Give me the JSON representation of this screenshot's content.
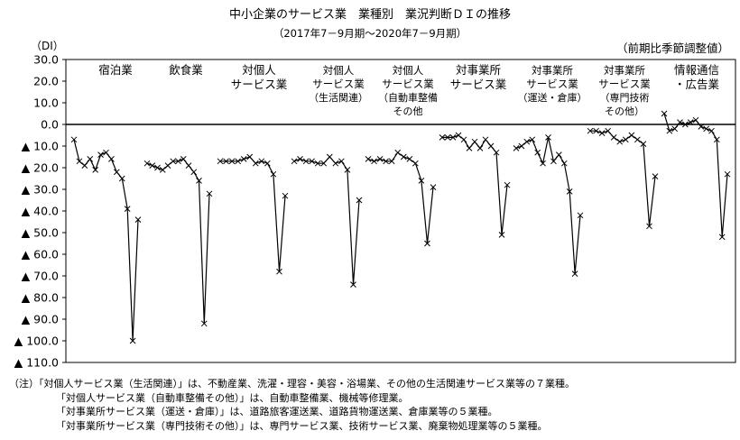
{
  "title": "中小企業のサービス業　業種別　業況判断ＤＩの推移",
  "subtitle": "（2017年7－9月期～2020年7－9月期）",
  "y_unit": "（DI）",
  "right_note": "（前期比季節調整値）",
  "notes": {
    "prefix": "（注）",
    "lines": [
      "「対個人サービス業（生活関連）」は、不動産業、洗濯・理容・美容・浴場業、その他の生活関連サービス業等の７業種。",
      "「対個人サービス業（自動車整備その他）」は、自動車整備業、機械等修理業。",
      "「対事業所サービス業（運送・倉庫）」は、道路旅客運送業、道路貨物運送業、倉庫業等の５業種。",
      "「対事業所サービス業（専門技術その他）」は、専門サービス業、技術サービス業、廃棄物処理業等の５業種。"
    ]
  },
  "chart_data": {
    "type": "line",
    "title": "中小企業のサービス業　業種別　業況判断ＤＩの推移",
    "subtitle": "（2017年7－9月期～2020年7－9月期）",
    "ylabel": "（DI）",
    "ylim": [
      -110,
      30
    ],
    "y_ticks": [
      {
        "value": 30,
        "label": "30.0"
      },
      {
        "value": 20,
        "label": "20.0"
      },
      {
        "value": 10,
        "label": "10.0"
      },
      {
        "value": 0,
        "label": "0.0"
      },
      {
        "value": -10,
        "label": "▲ 10.0"
      },
      {
        "value": -20,
        "label": "▲ 20.0"
      },
      {
        "value": -30,
        "label": "▲ 30.0"
      },
      {
        "value": -40,
        "label": "▲ 40.0"
      },
      {
        "value": -50,
        "label": "▲ 50.0"
      },
      {
        "value": -60,
        "label": "▲ 60.0"
      },
      {
        "value": -70,
        "label": "▲ 70.0"
      },
      {
        "value": -80,
        "label": "▲ 80.0"
      },
      {
        "value": -90,
        "label": "▲ 90.0"
      },
      {
        "value": -100,
        "label": "▲ 100.0"
      },
      {
        "value": -110,
        "label": "▲ 110.0"
      }
    ],
    "grid": false,
    "marker": "x",
    "line_color": "#000000",
    "series": [
      {
        "name": "宿泊業",
        "label_lines": [
          "宿泊業"
        ],
        "values": [
          -7,
          -17,
          -19,
          -16,
          -21,
          -14,
          -13,
          -16,
          -22,
          -25,
          -39,
          -100,
          -44
        ]
      },
      {
        "name": "飲食業",
        "label_lines": [
          "飲食業"
        ],
        "values": [
          -18,
          -19,
          -20,
          -21,
          -19,
          -17,
          -17,
          -16,
          -19,
          -22,
          -26,
          -92,
          -32
        ]
      },
      {
        "name": "対個人サービス業",
        "label_lines": [
          "対個人",
          "サービス業"
        ],
        "values": [
          -17,
          -17,
          -17,
          -17,
          -16,
          -15,
          -18,
          -17,
          -18,
          -23,
          -68,
          -33
        ]
      },
      {
        "name": "対個人サービス業（生活関連）",
        "label_lines": [
          "対個人",
          "サービス業",
          "（生活関連）"
        ],
        "values": [
          -17,
          -16,
          -17,
          -17,
          -18,
          -18,
          -15,
          -18,
          -17,
          -21,
          -74,
          -35
        ]
      },
      {
        "name": "対個人サービス業（自動車整備その他）",
        "label_lines": [
          "対個人",
          "サービス業",
          "（自動車整備",
          "その他"
        ],
        "values": [
          -16,
          -17,
          -16,
          -17,
          -17,
          -13,
          -15,
          -16,
          -18,
          -26,
          -55,
          -29
        ]
      },
      {
        "name": "対事業所サービス業",
        "label_lines": [
          "対事業所",
          "サービス業"
        ],
        "values": [
          -6,
          -6,
          -6,
          -5,
          -7,
          -11,
          -8,
          -11,
          -7,
          -10,
          -13,
          -51,
          -28
        ]
      },
      {
        "name": "対事業所サービス業（運送・倉庫）",
        "label_lines": [
          "対事業所",
          "サービス業",
          "（運送・倉庫）"
        ],
        "values": [
          -11,
          -10,
          -8,
          -7,
          -13,
          -18,
          -6,
          -17,
          -14,
          -18,
          -31,
          -69,
          -42
        ]
      },
      {
        "name": "対事業所サービス業（専門技術その他）",
        "label_lines": [
          "対事業所",
          "サービス業",
          "（専門技術",
          "その他）"
        ],
        "values": [
          -3,
          -3,
          -4,
          -3,
          -6,
          -8,
          -7,
          -5,
          -7,
          -9,
          -47,
          -24
        ]
      },
      {
        "name": "情報通信・広告業",
        "label_lines": [
          "情報通信",
          "・広告業"
        ],
        "values": [
          5,
          -3,
          -2,
          1,
          0,
          1,
          2,
          -1,
          -2,
          -3,
          -7,
          -52,
          -23
        ]
      }
    ]
  }
}
